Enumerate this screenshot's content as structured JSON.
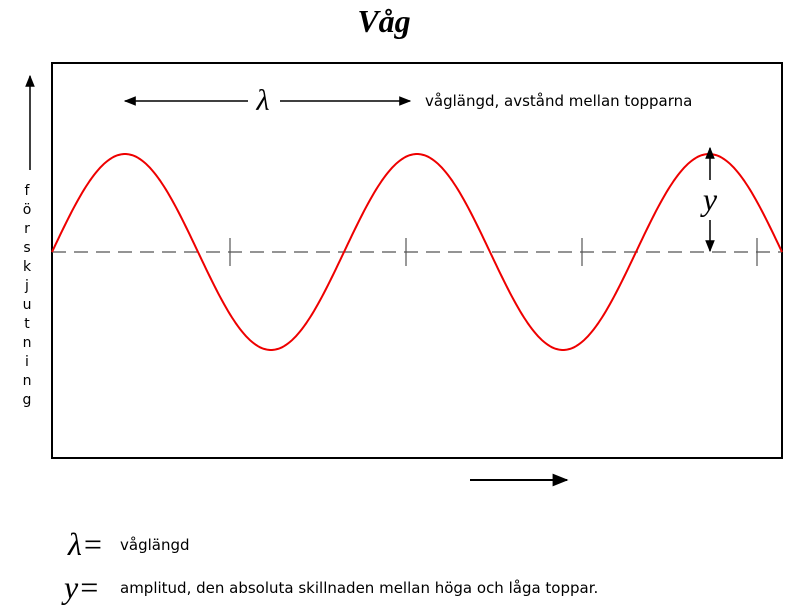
{
  "title": "Våg",
  "wave": {
    "wavelength_symbol": "λ",
    "wavelength_note": "våglängd, avstånd mellan topparna",
    "amplitude_symbol": "y",
    "y_axis_label": "förskjutning"
  },
  "legend": [
    {
      "symbol": "λ=",
      "text": "våglängd"
    },
    {
      "symbol": "y=",
      "text": "amplitud, den absoluta skillnaden mellan höga och låga toppar."
    }
  ]
}
